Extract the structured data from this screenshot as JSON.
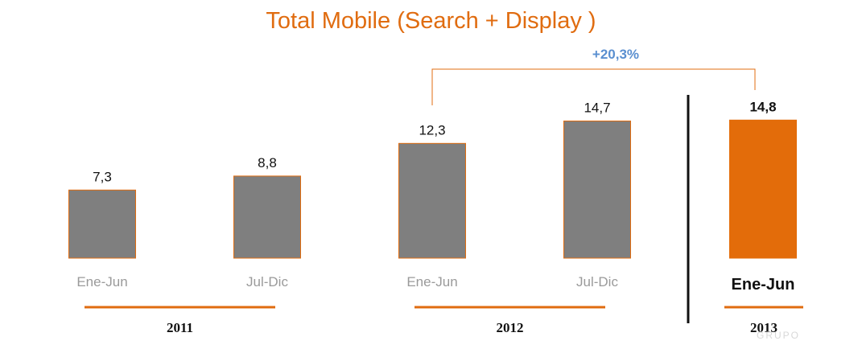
{
  "chart_data": {
    "type": "bar",
    "title": "Total Mobile (Search + Display )",
    "categories": [
      "Ene-Jun",
      "Jul-Dic",
      "Ene-Jun",
      "Jul-Dic",
      "Ene-Jun"
    ],
    "values": [
      7.3,
      8.8,
      12.3,
      14.7,
      14.8
    ],
    "value_labels": [
      "7,3",
      "8,8",
      "12,3",
      "14,7",
      "14,8"
    ],
    "groups": [
      {
        "label": "2011",
        "bars": [
          0,
          1
        ]
      },
      {
        "label": "2012",
        "bars": [
          2,
          3
        ]
      },
      {
        "label": "2013",
        "bars": [
          4
        ]
      }
    ],
    "highlight_index": 4,
    "annotation": {
      "text": "+20,3%",
      "from": 2,
      "to": 4
    },
    "ylim": [
      0,
      16
    ],
    "grid": false,
    "colors": {
      "bar": "#7f7f7f",
      "bar_edge": "#e06c10",
      "highlight": "#e36c0a",
      "accent": "#e06c10",
      "annotation_text": "#5a8fd0",
      "category_label": "#9a9a9a",
      "divider": "#111111"
    }
  }
}
